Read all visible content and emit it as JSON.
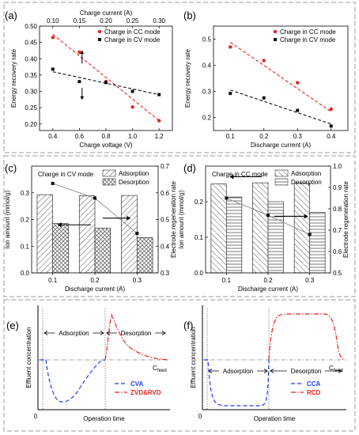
{
  "colors": {
    "red": "#e8211d",
    "black": "#111111",
    "blue": "#1f3cff",
    "gray": "#9a9a9a",
    "frame": "#9a9a9a"
  },
  "labels": {
    "a": "(a)",
    "b": "(b)",
    "c": "(c)",
    "d": "(d)",
    "e": "(e)",
    "f": "(f)"
  },
  "chart_data": [
    {
      "panel": "a",
      "type": "scatter",
      "xlabel": "Charge voltage (V)",
      "x_top_label": "Charge current (A)",
      "ylabel": "Energy recovery rate",
      "xlim": [
        0.3,
        1.3
      ],
      "x_ticks": [
        "0.4",
        "0.6",
        "0.8",
        "1.0",
        "1.2"
      ],
      "x_top_lim": [
        0.1,
        0.3
      ],
      "x_top_ticks": [
        "0.10",
        "0.15",
        "0.20",
        "0.25",
        "0.30"
      ],
      "ylim": [
        0.18,
        0.5
      ],
      "y_ticks": [
        "0.20",
        "0.25",
        "0.30",
        "0.35",
        "0.40",
        "0.45",
        "0.50"
      ],
      "legend": "top-right",
      "series": [
        {
          "name": "Charge in CC mode",
          "color": "red",
          "axis": "top",
          "x": [
            0.1,
            0.15,
            0.2,
            0.25,
            0.3
          ],
          "y": [
            0.465,
            0.42,
            0.33,
            0.252,
            0.21
          ],
          "fit": [
            [
              0.1,
              0.475
            ],
            [
              0.3,
              0.21
            ]
          ]
        },
        {
          "name": "Charge in CV mode",
          "color": "black",
          "axis": "bottom",
          "x": [
            0.4,
            0.6,
            0.8,
            1.0,
            1.2
          ],
          "y": [
            0.368,
            0.33,
            0.327,
            0.3,
            0.29
          ],
          "fit": [
            [
              0.4,
              0.36
            ],
            [
              1.2,
              0.29
            ]
          ]
        }
      ]
    },
    {
      "panel": "b",
      "type": "scatter",
      "xlabel": "Discharge current (A)",
      "ylabel": "Energy recovery rate",
      "xlim": [
        0.05,
        0.45
      ],
      "x_ticks": [
        "0.1",
        "0.2",
        "0.3",
        "0.4"
      ],
      "ylim": [
        0.15,
        0.55
      ],
      "y_ticks": [
        "0.2",
        "0.3",
        "0.4",
        "0.5"
      ],
      "legend": "top-right",
      "series": [
        {
          "name": "Charge in CC mode",
          "color": "red",
          "x": [
            0.1,
            0.2,
            0.3,
            0.4
          ],
          "y": [
            0.47,
            0.418,
            0.333,
            0.232
          ],
          "fit": [
            [
              0.1,
              0.488
            ],
            [
              0.4,
              0.222
            ]
          ]
        },
        {
          "name": "Charge in CV mode",
          "color": "black",
          "x": [
            0.1,
            0.2,
            0.3,
            0.4
          ],
          "y": [
            0.292,
            0.275,
            0.227,
            0.167
          ],
          "fit": [
            [
              0.1,
              0.305
            ],
            [
              0.4,
              0.175
            ]
          ]
        }
      ]
    },
    {
      "panel": "c",
      "type": "bar",
      "title": "Charge in CV mode",
      "xlabel": "Discharge current (A)",
      "ylabel": "Ion amount  (mmol/g)",
      "y2label": "Electrode regeneration rate",
      "categories": [
        "0.1",
        "0.2",
        "0.3"
      ],
      "ylim": [
        0,
        0.4
      ],
      "y_ticks": [
        "0.0",
        "0.1",
        "0.2",
        "0.3"
      ],
      "y2lim": [
        0.3,
        0.7
      ],
      "y2_ticks": [
        "0.3",
        "0.4",
        "0.5",
        "0.6",
        "0.7"
      ],
      "legend": "top-right",
      "series": [
        {
          "name": "Adsorption",
          "values": [
            0.293,
            0.289,
            0.29
          ],
          "pattern": "hatch-a"
        },
        {
          "name": "Desorption",
          "values": [
            0.185,
            0.167,
            0.132
          ],
          "pattern": "hatch-x"
        }
      ],
      "line": {
        "values": [
          0.635,
          0.58,
          0.448
        ]
      }
    },
    {
      "panel": "d",
      "type": "bar",
      "title": "Charge in CC mode",
      "xlabel": "Discharge current (A)",
      "ylabel": "Ion amount  (mmol/g)",
      "y2label": "Electrode regeneration rate",
      "categories": [
        "0.1",
        "0.2",
        "0.3"
      ],
      "ylim": [
        0,
        0.3
      ],
      "y_ticks": [
        "0.0",
        "0.1",
        "0.2"
      ],
      "y2lim": [
        0.5,
        1.0
      ],
      "y2_ticks": [
        "0.5",
        "0.6",
        "0.7",
        "0.8",
        "0.9",
        "1.0"
      ],
      "legend": "top-right",
      "series": [
        {
          "name": "Adsorption",
          "values": [
            0.25,
            0.253,
            0.252
          ],
          "pattern": "hatch-b"
        },
        {
          "name": "Desorption",
          "values": [
            0.213,
            0.2,
            0.17
          ],
          "pattern": "hatch-h"
        }
      ],
      "line": {
        "values": [
          0.85,
          0.77,
          0.68
        ]
      }
    },
    {
      "panel": "e",
      "type": "line",
      "xlabel": "Operation time",
      "ylabel": "Effluent concentration",
      "origin": "0",
      "feed_label": "C",
      "feed_sub": "feed",
      "phases": [
        "Adsorption",
        "Desorption"
      ],
      "legend": "bottom-right",
      "series": [
        {
          "name": "CVA",
          "color": "blue",
          "dash": "dash"
        },
        {
          "name": "ZVD&RVD",
          "color": "red",
          "dash": "dashdot"
        }
      ]
    },
    {
      "panel": "f",
      "type": "line",
      "xlabel": "Operation time",
      "ylabel": "Effluent concentration",
      "origin": "0",
      "feed_label": "C",
      "feed_sub": "feed",
      "phases": [
        "Adsorption",
        "Desorption"
      ],
      "legend": "bottom-right",
      "series": [
        {
          "name": "CCA",
          "color": "blue",
          "dash": "dash"
        },
        {
          "name": "RCD",
          "color": "red",
          "dash": "dashdot"
        }
      ]
    }
  ]
}
